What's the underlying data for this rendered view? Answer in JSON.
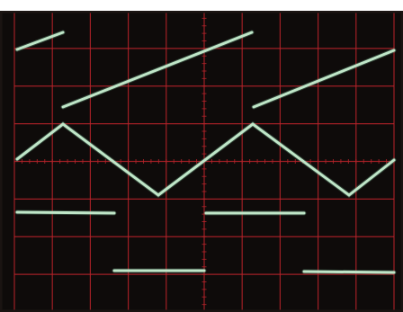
{
  "caption": "",
  "colors": {
    "screen_background": "#0e0b0a",
    "bezel": "#1a1412",
    "graticule": "#b8232a",
    "trace": "#bfe6c8",
    "trace_glow": "#6fa88a",
    "page_background": "#ffffff"
  },
  "oscilloscope": {
    "graticule": {
      "divisions_x": 10,
      "divisions_y": 8,
      "subdivisions": 5
    },
    "traces": [
      {
        "id": "sawtooth",
        "waveform": "sawtooth",
        "cycles": 2
      },
      {
        "id": "triangle",
        "waveform": "triangle",
        "cycles": 2
      },
      {
        "id": "square",
        "waveform": "square",
        "cycles": 2
      }
    ]
  }
}
